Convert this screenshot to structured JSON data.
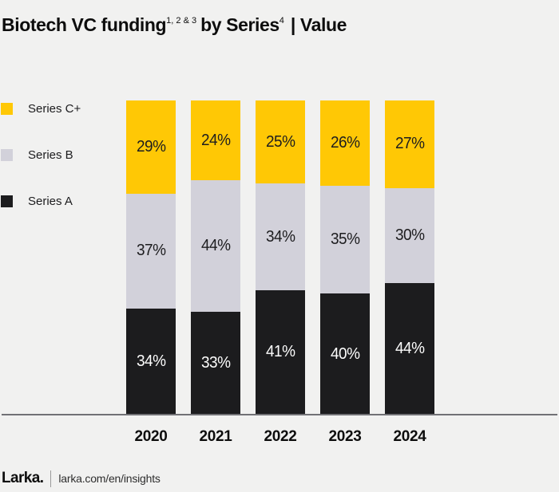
{
  "title": {
    "part1": "Biotech VC funding",
    "sup1": "1, 2 & 3",
    "part2": "by Series",
    "sup2": "4",
    "part3": "| Value"
  },
  "legend": [
    {
      "label": "Series C+",
      "color": "#ffc805"
    },
    {
      "label": "Series B",
      "color": "#d2d1da"
    },
    {
      "label": "Series A",
      "color": "#1c1c1e"
    }
  ],
  "chart_data": {
    "type": "bar",
    "stacked": true,
    "percent_stacked": true,
    "unit": "%",
    "categories": [
      "2020",
      "2021",
      "2022",
      "2023",
      "2024"
    ],
    "series": [
      {
        "name": "Series A",
        "color": "#1c1c1e",
        "label_color": "#fdfdfd",
        "values": [
          34,
          33,
          41,
          40,
          44
        ],
        "labels": [
          "34%",
          "33%",
          "41%",
          "40%",
          "44%"
        ]
      },
      {
        "name": "Series B",
        "color": "#d2d1da",
        "label_color": "#1d1d1f",
        "values": [
          37,
          44,
          34,
          35,
          30
        ],
        "labels": [
          "37%",
          "44%",
          "34%",
          "35%",
          "30%"
        ]
      },
      {
        "name": "Series C+",
        "color": "#ffc805",
        "label_color": "#1d1d1f",
        "values": [
          29,
          24,
          25,
          26,
          27
        ],
        "labels": [
          "29%",
          "24%",
          "25%",
          "26%",
          "27%"
        ]
      }
    ],
    "draw_order_top_to_bottom": [
      2,
      1,
      0
    ],
    "legend_position": "left",
    "grid": false,
    "ylim": [
      0,
      100
    ]
  },
  "colors": {
    "background": "#f1f1f0",
    "axis_line": "#717175",
    "accent_yellow": "#ffc805",
    "neutral_gray": "#d2d1da",
    "series_black": "#1c1c1e"
  },
  "footer": {
    "brand": "Larka.",
    "url": "larka.com/en/insights"
  }
}
